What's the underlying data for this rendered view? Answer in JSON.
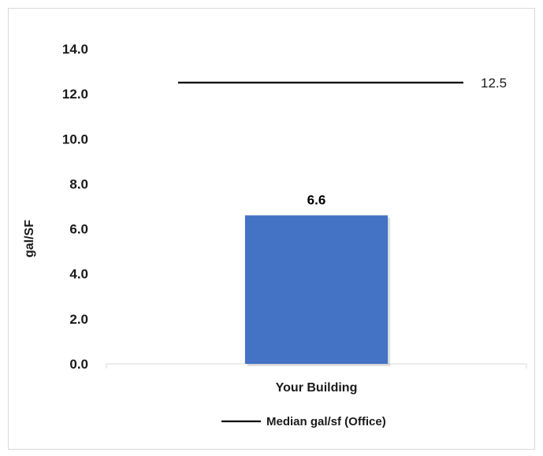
{
  "chart_data": {
    "type": "bar",
    "categories": [
      "Your Building"
    ],
    "series": [
      {
        "values": [
          6.6
        ],
        "color": "#4472c4"
      }
    ],
    "data_labels": [
      "6.6"
    ],
    "reference_line": {
      "name": "Median gal/sf (Office)",
      "value": 12.5,
      "label": "12.5",
      "color": "#000000"
    },
    "ylabel": "gal/SF",
    "ylim": [
      0,
      14
    ],
    "yticks": [
      "0.0",
      "2.0",
      "4.0",
      "6.0",
      "8.0",
      "10.0",
      "12.0",
      "14.0"
    ],
    "grid": false,
    "legend": {
      "placement": "bottom",
      "entries": [
        "Median gal/sf (Office)"
      ]
    }
  }
}
